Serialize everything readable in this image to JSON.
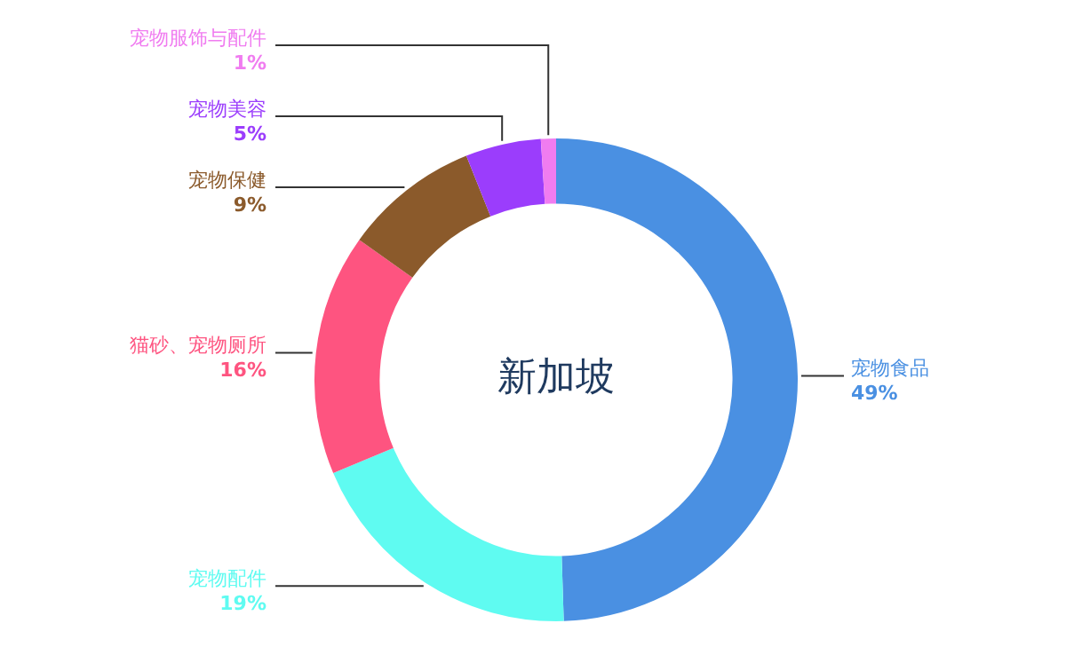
{
  "chart_data": {
    "type": "donut",
    "title": "新加坡",
    "categories": [
      "宠物食品",
      "宠物配件",
      "猫砂、宠物厕所",
      "宠物保健",
      "宠物美容",
      "宠物服饰与配件"
    ],
    "values": [
      49,
      19,
      16,
      9,
      5,
      1
    ],
    "value_labels": [
      "49%",
      "19%",
      "16%",
      "9%",
      "5%",
      "1%"
    ],
    "colors": [
      "#4a90e2",
      "#5ffbf1",
      "#fe5480",
      "#8b5a2b",
      "#9b3dfc",
      "#f07cf0"
    ],
    "legend": false
  }
}
